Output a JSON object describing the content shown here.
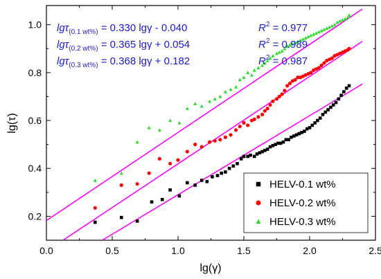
{
  "chart_data": {
    "type": "scatter",
    "xlabel": "lg(γ)",
    "ylabel": "lg(τ)",
    "xlim": [
      0.0,
      2.5
    ],
    "ylim": [
      0.1,
      1.08
    ],
    "x_ticks": [
      "0.0",
      "0.5",
      "1.0",
      "1.5",
      "2.0",
      "2.5"
    ],
    "x_tick_values": [
      0.0,
      0.5,
      1.0,
      1.5,
      2.0,
      2.5
    ],
    "y_ticks": [
      "0.2",
      "0.4",
      "0.6",
      "0.8",
      "1.0"
    ],
    "y_tick_values": [
      0.2,
      0.4,
      0.6,
      0.8,
      1.0
    ],
    "grid": false,
    "legend_position": "bottom-right",
    "fit_line_color": "#ff00ff",
    "equation_color": "#1a1ad0",
    "equations": [
      {
        "lhs": "lgτ",
        "sub": "(0.1 wt%)",
        "rhs": " = 0.330 lgγ - 0.040",
        "r2_label": "R",
        "r2_sup": "2",
        "r2_value": " = 0.977"
      },
      {
        "lhs": "lgτ",
        "sub": "(0.2 wt%)",
        "rhs": " = 0.365 lgγ + 0.054",
        "r2_label": "R",
        "r2_sup": "2",
        "r2_value": " = 0.989"
      },
      {
        "lhs": "lgτ",
        "sub": "(0.3 wt%)",
        "rhs": " = 0.368 lgγ + 0.182",
        "r2_label": "R",
        "r2_sup": "2",
        "r2_value": " = 0.987"
      }
    ],
    "series": [
      {
        "name": "HELV-0.1 wt%",
        "color": "#000000",
        "marker": "square",
        "fit": {
          "slope": 0.33,
          "intercept": -0.04,
          "x_range": [
            0.0,
            2.4
          ]
        },
        "x": [
          0.37,
          0.57,
          0.69,
          0.8,
          0.88,
          0.94,
          1.01,
          1.07,
          1.13,
          1.18,
          1.22,
          1.26,
          1.3,
          1.33,
          1.36,
          1.39,
          1.42,
          1.45,
          1.48,
          1.5,
          1.53,
          1.55,
          1.58,
          1.6,
          1.62,
          1.64,
          1.66,
          1.68,
          1.7,
          1.72,
          1.74,
          1.76,
          1.78,
          1.8,
          1.82,
          1.84,
          1.86,
          1.88,
          1.9,
          1.92,
          1.94,
          1.96,
          1.98,
          2.0,
          2.02,
          2.04,
          2.06,
          2.08,
          2.1,
          2.12,
          2.14,
          2.16,
          2.18,
          2.2,
          2.22,
          2.24,
          2.26,
          2.28,
          2.3
        ],
        "y": [
          0.175,
          0.195,
          0.18,
          0.26,
          0.27,
          0.31,
          0.285,
          0.34,
          0.33,
          0.35,
          0.345,
          0.365,
          0.37,
          0.38,
          0.385,
          0.4,
          0.41,
          0.42,
          0.44,
          0.45,
          0.45,
          0.455,
          0.45,
          0.46,
          0.465,
          0.47,
          0.475,
          0.48,
          0.49,
          0.495,
          0.5,
          0.505,
          0.505,
          0.51,
          0.52,
          0.52,
          0.53,
          0.535,
          0.54,
          0.545,
          0.55,
          0.555,
          0.565,
          0.57,
          0.58,
          0.59,
          0.6,
          0.61,
          0.625,
          0.635,
          0.645,
          0.655,
          0.665,
          0.675,
          0.69,
          0.705,
          0.72,
          0.735,
          0.745
        ]
      },
      {
        "name": "HELV-0.2 wt%",
        "color": "#ff0000",
        "marker": "circle",
        "fit": {
          "slope": 0.365,
          "intercept": 0.054,
          "x_range": [
            0.0,
            2.4
          ]
        },
        "x": [
          0.37,
          0.57,
          0.69,
          0.78,
          0.86,
          0.94,
          1.0,
          1.07,
          1.13,
          1.18,
          1.24,
          1.28,
          1.32,
          1.36,
          1.4,
          1.44,
          1.47,
          1.5,
          1.53,
          1.56,
          1.58,
          1.61,
          1.64,
          1.66,
          1.68,
          1.7,
          1.72,
          1.75,
          1.77,
          1.79,
          1.81,
          1.83,
          1.85,
          1.87,
          1.89,
          1.91,
          1.93,
          1.95,
          1.97,
          1.99,
          2.01,
          2.03,
          2.05,
          2.07,
          2.09,
          2.11,
          2.13,
          2.15,
          2.17,
          2.19,
          2.21,
          2.23,
          2.25,
          2.27,
          2.29,
          2.3
        ],
        "y": [
          0.235,
          0.33,
          0.335,
          0.38,
          0.44,
          0.42,
          0.435,
          0.47,
          0.5,
          0.49,
          0.51,
          0.515,
          0.52,
          0.53,
          0.54,
          0.56,
          0.575,
          0.59,
          0.58,
          0.6,
          0.605,
          0.615,
          0.625,
          0.64,
          0.65,
          0.665,
          0.68,
          0.69,
          0.7,
          0.71,
          0.725,
          0.745,
          0.755,
          0.765,
          0.77,
          0.78,
          0.78,
          0.785,
          0.79,
          0.795,
          0.8,
          0.81,
          0.815,
          0.82,
          0.83,
          0.84,
          0.85,
          0.855,
          0.86,
          0.87,
          0.875,
          0.88,
          0.885,
          0.89,
          0.895,
          0.9
        ]
      },
      {
        "name": "HELV-0.3 wt%",
        "color": "#22dd22",
        "marker": "triangle",
        "fit": {
          "slope": 0.368,
          "intercept": 0.182,
          "x_range": [
            0.0,
            2.4
          ]
        },
        "x": [
          0.37,
          0.57,
          0.69,
          0.78,
          0.86,
          0.94,
          1.01,
          1.07,
          1.13,
          1.18,
          1.24,
          1.28,
          1.32,
          1.36,
          1.4,
          1.44,
          1.47,
          1.5,
          1.53,
          1.56,
          1.58,
          1.61,
          1.64,
          1.66,
          1.68,
          1.7,
          1.72,
          1.75,
          1.77,
          1.79,
          1.81,
          1.83,
          1.85,
          1.87,
          1.89,
          1.91,
          1.93,
          1.95,
          1.97,
          1.99,
          2.01,
          2.03,
          2.05,
          2.07,
          2.09,
          2.11,
          2.13,
          2.15,
          2.17,
          2.19,
          2.21,
          2.23,
          2.25,
          2.27,
          2.29,
          2.3
        ],
        "y": [
          0.35,
          0.38,
          0.51,
          0.57,
          0.56,
          0.6,
          0.59,
          0.65,
          0.67,
          0.66,
          0.68,
          0.69,
          0.7,
          0.72,
          0.73,
          0.74,
          0.77,
          0.78,
          0.8,
          0.79,
          0.81,
          0.82,
          0.83,
          0.84,
          0.85,
          0.86,
          0.87,
          0.88,
          0.885,
          0.89,
          0.9,
          0.91,
          0.915,
          0.92,
          0.925,
          0.93,
          0.935,
          0.94,
          0.945,
          0.95,
          0.955,
          0.96,
          0.965,
          0.97,
          0.975,
          0.98,
          0.985,
          0.99,
          0.995,
          1.0,
          1.01,
          1.015,
          1.02,
          1.025,
          1.03,
          1.04
        ]
      }
    ]
  }
}
